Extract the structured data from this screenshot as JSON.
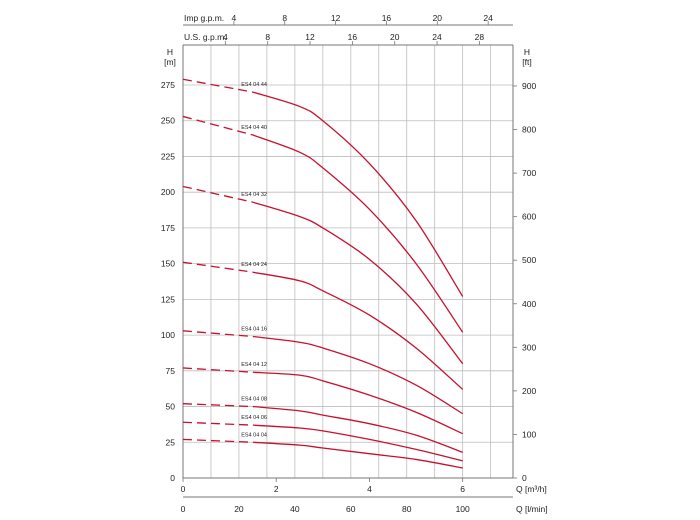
{
  "chart_data": {
    "type": "line",
    "top_axis_imp": {
      "label": "Imp g.p.m.",
      "ticks": [
        4,
        8,
        12,
        16,
        20,
        24
      ]
    },
    "top_axis_us": {
      "label": "U.S. g.p.m.",
      "ticks": [
        4,
        8,
        12,
        16,
        20,
        24,
        28
      ]
    },
    "left_axis": {
      "label_top": "H",
      "label_unit": "[m]",
      "ticks": [
        0,
        25,
        50,
        75,
        100,
        125,
        150,
        175,
        200,
        225,
        250,
        275
      ],
      "ylim": [
        0,
        290
      ]
    },
    "right_axis": {
      "label_top": "H",
      "label_unit": "[ft]",
      "ticks": [
        0,
        100,
        200,
        300,
        400,
        500,
        600,
        700,
        800,
        900
      ]
    },
    "bottom_axis_m3h": {
      "label": "Q [m³/h]",
      "ticks": [
        0,
        2,
        4,
        6
      ],
      "xlim": [
        0,
        7.08
      ]
    },
    "bottom_axis_lmin": {
      "label": "Q [l/min]",
      "ticks": [
        0,
        20,
        40,
        60,
        80,
        100
      ]
    },
    "series_color": "#c8102e",
    "series": [
      {
        "name": "ES4 04 44",
        "dash": [
          [
            0,
            279
          ],
          [
            1.5,
            270
          ]
        ],
        "solid": [
          [
            1.5,
            270
          ],
          [
            2.5,
            260
          ],
          [
            3,
            250
          ],
          [
            4,
            220
          ],
          [
            5,
            180
          ],
          [
            6,
            127
          ]
        ]
      },
      {
        "name": "ES4 04 40",
        "dash": [
          [
            0,
            253
          ],
          [
            1.5,
            240
          ]
        ],
        "solid": [
          [
            1.5,
            240
          ],
          [
            2.5,
            228
          ],
          [
            3,
            217
          ],
          [
            4,
            188
          ],
          [
            5,
            150
          ],
          [
            6,
            102
          ]
        ]
      },
      {
        "name": "ES4 04 32",
        "dash": [
          [
            0,
            204
          ],
          [
            1.5,
            193
          ]
        ],
        "solid": [
          [
            1.5,
            193
          ],
          [
            2.5,
            183
          ],
          [
            3,
            175
          ],
          [
            4,
            153
          ],
          [
            5,
            122
          ],
          [
            6,
            80
          ]
        ]
      },
      {
        "name": "ES4 04 24",
        "dash": [
          [
            0,
            151
          ],
          [
            1.5,
            144
          ]
        ],
        "solid": [
          [
            1.5,
            144
          ],
          [
            2.5,
            138
          ],
          [
            3,
            131
          ],
          [
            4,
            114
          ],
          [
            5,
            91
          ],
          [
            6,
            62
          ]
        ]
      },
      {
        "name": "ES4 04 16",
        "dash": [
          [
            0,
            103
          ],
          [
            1.5,
            99
          ]
        ],
        "solid": [
          [
            1.5,
            99
          ],
          [
            2.5,
            95
          ],
          [
            3,
            91
          ],
          [
            4,
            80
          ],
          [
            5,
            65
          ],
          [
            6,
            45
          ]
        ]
      },
      {
        "name": "ES4 04 12",
        "dash": [
          [
            0,
            77
          ],
          [
            1.5,
            74
          ]
        ],
        "solid": [
          [
            1.5,
            74
          ],
          [
            2.5,
            72
          ],
          [
            3,
            68
          ],
          [
            4,
            58
          ],
          [
            5,
            46
          ],
          [
            6,
            31
          ]
        ]
      },
      {
        "name": "ES4 04 08",
        "dash": [
          [
            0,
            52
          ],
          [
            1.5,
            50
          ]
        ],
        "solid": [
          [
            1.5,
            50
          ],
          [
            2.5,
            47
          ],
          [
            3,
            44
          ],
          [
            4,
            38
          ],
          [
            5,
            30
          ],
          [
            6,
            18
          ]
        ]
      },
      {
        "name": "ES4 04 06",
        "dash": [
          [
            0,
            39
          ],
          [
            1.5,
            37
          ]
        ],
        "solid": [
          [
            1.5,
            37
          ],
          [
            2.5,
            35
          ],
          [
            3,
            33
          ],
          [
            4,
            27
          ],
          [
            5,
            20
          ],
          [
            6,
            12
          ]
        ]
      },
      {
        "name": "ES4 04 04",
        "dash": [
          [
            0,
            27
          ],
          [
            1.5,
            25
          ]
        ],
        "solid": [
          [
            1.5,
            25
          ],
          [
            2.5,
            23
          ],
          [
            3,
            21
          ],
          [
            4,
            17
          ],
          [
            5,
            13
          ],
          [
            6,
            7
          ]
        ]
      }
    ]
  }
}
